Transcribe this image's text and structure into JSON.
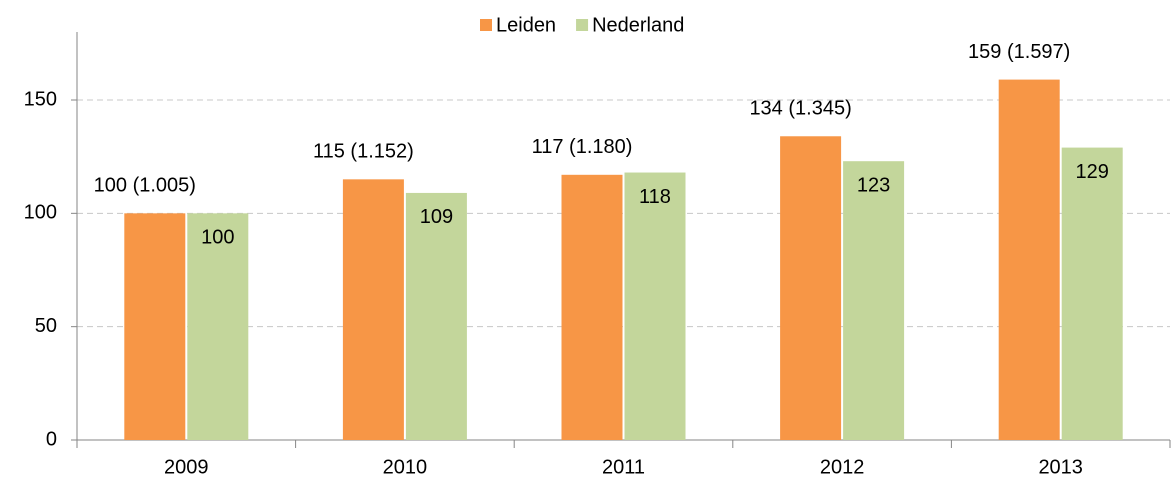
{
  "chart_data": {
    "type": "bar",
    "categories": [
      "2009",
      "2010",
      "2011",
      "2012",
      "2013"
    ],
    "series": [
      {
        "name": "Leiden",
        "color": "#f79646",
        "values": [
          100,
          115,
          117,
          134,
          159
        ],
        "value_labels": [
          "100 (1.005)",
          "115 (1.152)",
          "117 (1.180)",
          "134 (1.345)",
          "159 (1.597)"
        ]
      },
      {
        "name": "Nederland",
        "color": "#c3d69b",
        "values": [
          100,
          109,
          118,
          123,
          129
        ]
      }
    ],
    "ylim": [
      0,
      180
    ],
    "yticks": [
      0,
      50,
      100,
      150
    ],
    "grid": true,
    "legend": "top"
  }
}
